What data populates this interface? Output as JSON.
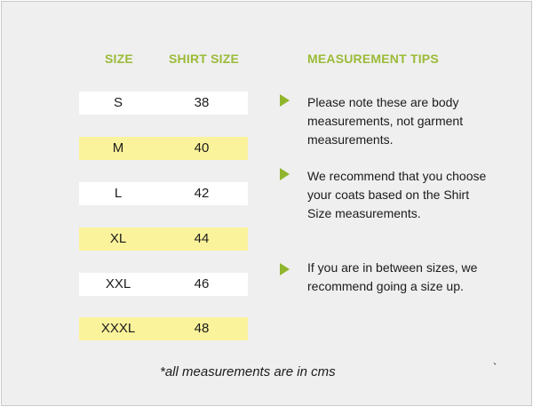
{
  "headers": {
    "size": "SIZE",
    "shirt_size": "SHIRT SIZE",
    "tips": "MEASUREMENT TIPS"
  },
  "rows": [
    {
      "size": "S",
      "shirt": "38"
    },
    {
      "size": "M",
      "shirt": "40"
    },
    {
      "size": "L",
      "shirt": "42"
    },
    {
      "size": "XL",
      "shirt": "44"
    },
    {
      "size": "XXL",
      "shirt": "46"
    },
    {
      "size": "XXXL",
      "shirt": "48"
    }
  ],
  "tips": [
    "Please note these are body measurements, not garment measurements.",
    "We recommend that you choose your coats based on the Shirt Size measurements.",
    "If you are in between sizes, we recommend going a size up."
  ],
  "footnote": "*all measurements are in cms",
  "stray_mark": "`",
  "colors": {
    "accent": "#9bbb38",
    "arrow": "#8fb52c",
    "highlight_row": "#fbf39b",
    "plain_row": "#ffffff",
    "background": "#efefef"
  },
  "icons": {
    "bullet": "triangle-arrow-icon"
  }
}
